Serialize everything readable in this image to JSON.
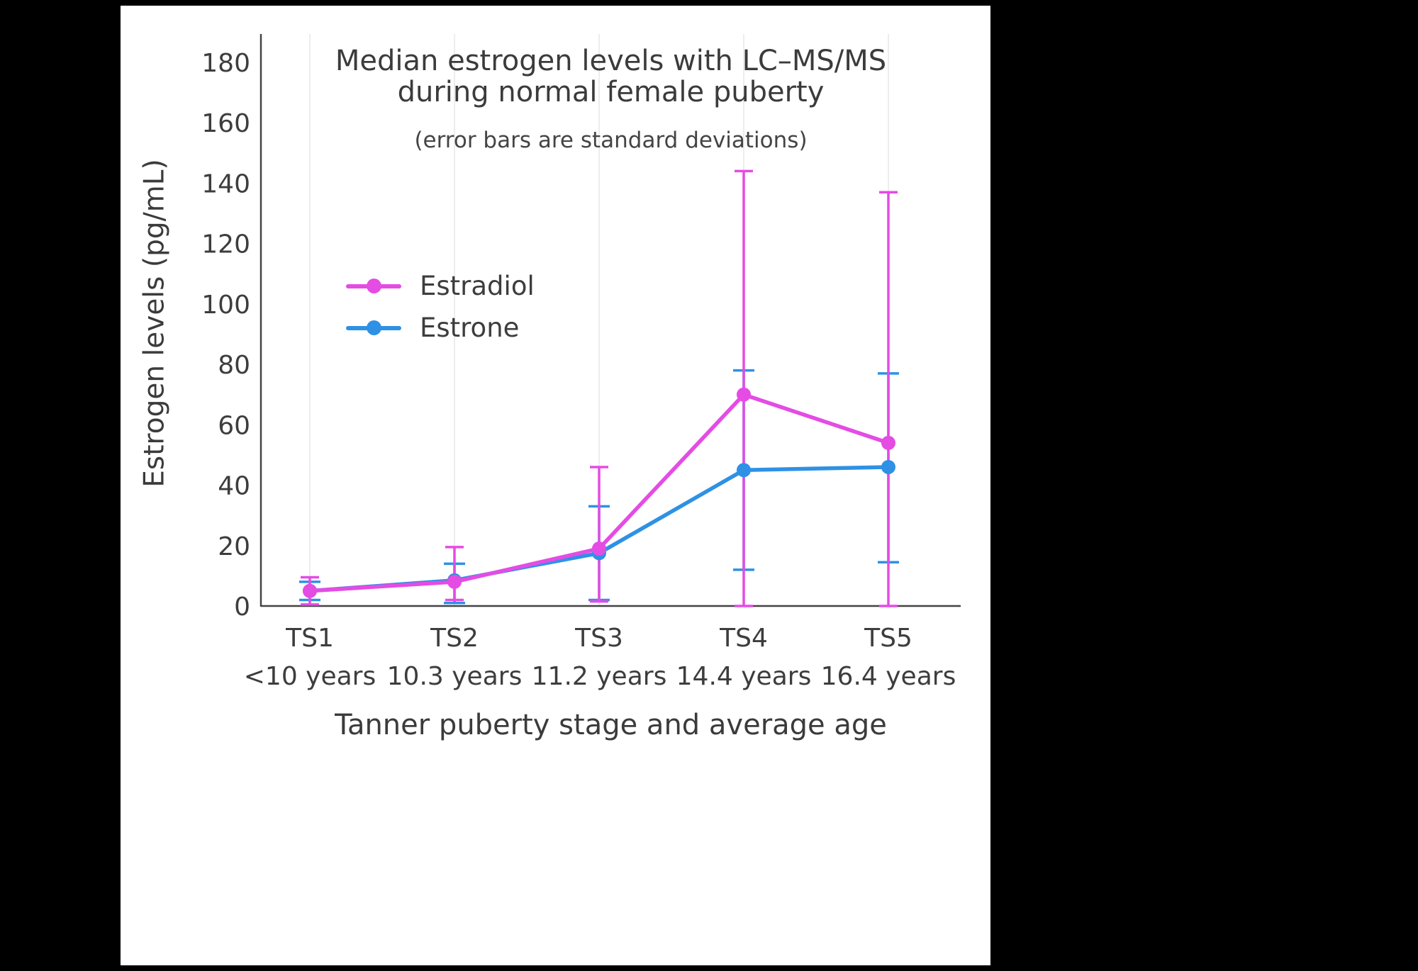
{
  "chart_data": {
    "type": "line",
    "title": "Median estrogen levels with LC–MS/MS during normal female puberty",
    "title_lines": [
      "Median estrogen levels with LC–MS/MS",
      "during normal female puberty"
    ],
    "subtitle": "(error bars are standard deviations)",
    "xlabel": "Tanner puberty stage and average age",
    "ylabel": "Estrogen levels (pg/mL)",
    "categories": [
      "TS1",
      "TS2",
      "TS3",
      "TS4",
      "TS5"
    ],
    "category_ages": [
      "<10 years",
      "10.3 years",
      "11.2 years",
      "14.4 years",
      "16.4 years"
    ],
    "ylim": [
      0,
      190
    ],
    "yticks": [
      0,
      20,
      40,
      60,
      80,
      100,
      120,
      140,
      160,
      180
    ],
    "grid": "vertical",
    "legend_position": "upper-left-inside",
    "error_bars": "standard deviations",
    "series": [
      {
        "name": "Estradiol",
        "color": "#E44CE4",
        "values": [
          5,
          8,
          19,
          70,
          54
        ],
        "err_lo": [
          0.5,
          2,
          1.5,
          0,
          0
        ],
        "err_hi": [
          9.5,
          19.5,
          46,
          144,
          137
        ]
      },
      {
        "name": "Estrone",
        "color": "#2E91E5",
        "values": [
          5,
          8.5,
          17.5,
          45,
          46
        ],
        "err_lo": [
          2,
          1,
          2,
          12,
          14.5
        ],
        "err_hi": [
          8,
          14,
          33,
          78,
          77
        ]
      }
    ],
    "axis_color": "#444444",
    "grid_color": "#e7e7e7",
    "text_color": "#3d3d3d"
  }
}
